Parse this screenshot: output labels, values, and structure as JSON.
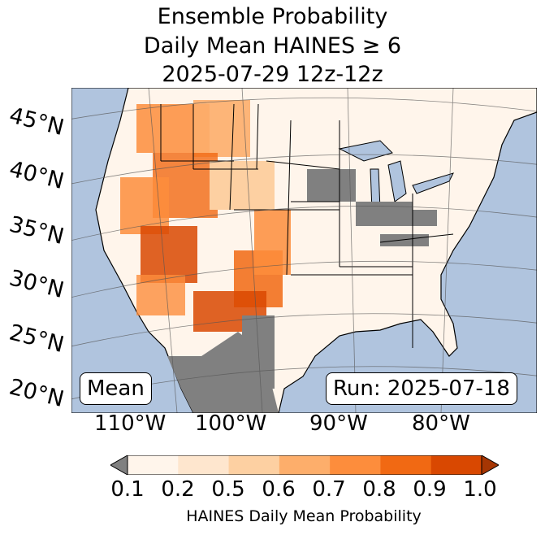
{
  "title": {
    "line1": "Ensemble Probability",
    "line2": "Daily Mean HAINES ≥ 6",
    "line3": "2025-07-29 12z-12z"
  },
  "map": {
    "lat_labels": [
      "45°N",
      "40°N",
      "35°N",
      "30°N",
      "25°N",
      "20°N"
    ],
    "lon_labels": [
      "110°W",
      "100°W",
      "90°W",
      "80°W"
    ],
    "ocean_color": "#b0c4de",
    "land_low_color": "#fff5eb",
    "missing_color": "#808080"
  },
  "mean_box": "Mean",
  "run_box": "Run: 2025-07-18",
  "colorbar": {
    "label": "HAINES Daily Mean Probability",
    "ticks": [
      "0.1",
      "0.2",
      "0.5",
      "0.6",
      "0.7",
      "0.8",
      "0.9",
      "1.0"
    ],
    "colors": [
      "#fff5eb",
      "#fee6ce",
      "#fdd0a2",
      "#fdae6b",
      "#fd8d3c",
      "#f16913",
      "#d94801",
      "#a63603"
    ],
    "under_color": "#808080"
  }
}
